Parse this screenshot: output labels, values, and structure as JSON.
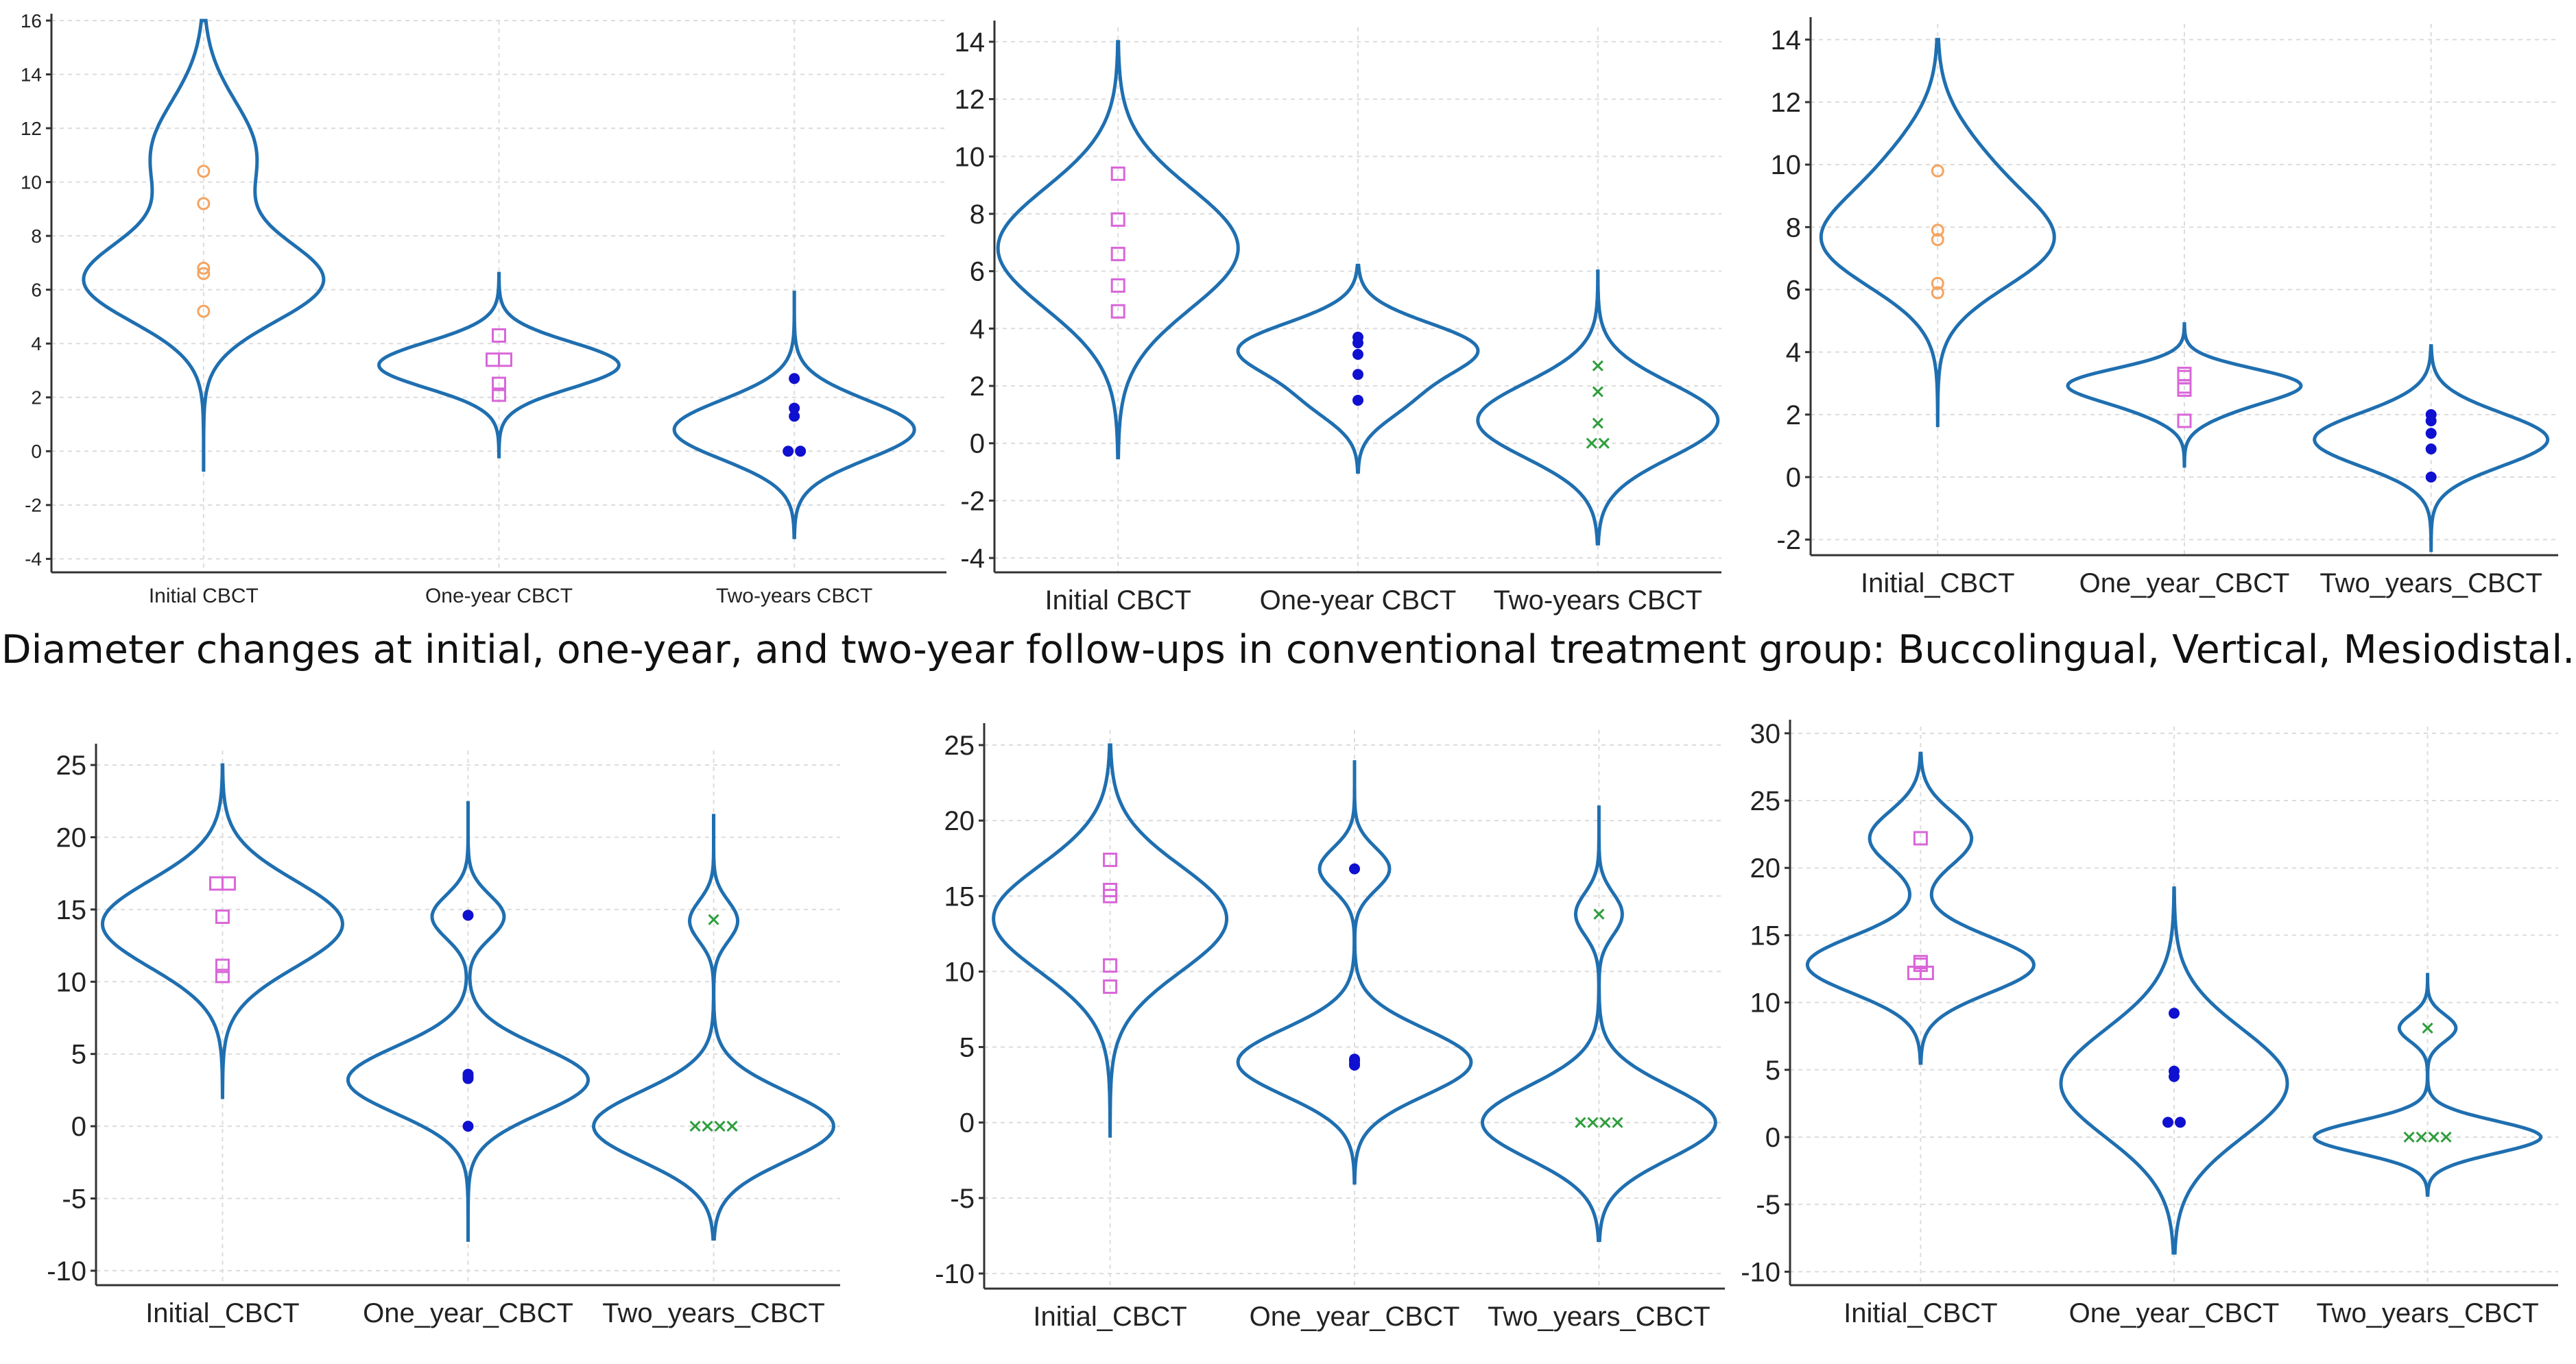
{
  "caption": "Diameter changes at initial, one-year, and two-year follow-ups in conventional treatment group: Buccolingual, Vertical, Mesiodistal.",
  "colors": {
    "violin": "#1f6fb0",
    "circle": "#f4a460",
    "square": "#d966d9",
    "dot": "#1010d0",
    "cross": "#2e9e3c",
    "grid": "#dcdcdc"
  },
  "chart_data": [
    {
      "type": "violin",
      "ylim": [
        -4.5,
        16
      ],
      "yticks": [
        -4,
        -2,
        0,
        2,
        4,
        6,
        8,
        10,
        12,
        14,
        16
      ],
      "ytick_labels": [
        "-4",
        "-2",
        "0",
        "2",
        "4",
        "6",
        "8",
        "10",
        "12",
        "14",
        "16"
      ],
      "categories": [
        "Initial CBCT",
        "One-year CBCT",
        "Two-years CBCT"
      ],
      "series": [
        {
          "name": "Initial CBCT",
          "marker": "circle",
          "values": [
            10.4,
            9.2,
            6.8,
            6.6,
            5.2
          ],
          "violin": {
            "min": -0.7,
            "max": 16,
            "modes": [
              {
                "y": 6.3,
                "w": 1,
                "s": 1.5
              },
              {
                "y": 11,
                "w": 0.45,
                "s": 2
              }
            ]
          }
        },
        {
          "name": "One-year CBCT",
          "marker": "square",
          "values": [
            4.3,
            3.4,
            3.4,
            2.5,
            2.1
          ],
          "violin": {
            "min": -0.2,
            "max": 6.6,
            "modes": [
              {
                "y": 3.2,
                "w": 1,
                "s": 0.85
              }
            ]
          }
        },
        {
          "name": "Two-years CBCT",
          "marker": "dot",
          "values": [
            2.7,
            1.6,
            1.3,
            0,
            0
          ],
          "violin": {
            "min": -3.2,
            "max": 5.9,
            "modes": [
              {
                "y": 0.8,
                "w": 1,
                "s": 1.1
              }
            ]
          }
        }
      ]
    },
    {
      "type": "violin",
      "ylim": [
        -4.5,
        14.5
      ],
      "yticks": [
        -4,
        -2,
        0,
        2,
        4,
        6,
        8,
        10,
        12,
        14
      ],
      "ytick_labels": [
        "-4",
        "-2",
        "0",
        "2",
        "4",
        "6",
        "8",
        "10",
        "12",
        "14"
      ],
      "categories": [
        "Initial CBCT",
        "One-year CBCT",
        "Two-years CBCT"
      ],
      "series": [
        {
          "name": "Initial CBCT",
          "marker": "square",
          "values": [
            9.4,
            7.8,
            6.6,
            5.5,
            4.6
          ],
          "violin": {
            "min": -0.5,
            "max": 14,
            "modes": [
              {
                "y": 6.8,
                "w": 1,
                "s": 2.1
              }
            ]
          }
        },
        {
          "name": "One-year CBCT",
          "marker": "dot",
          "values": [
            3.7,
            3.5,
            3.1,
            2.4,
            1.5
          ],
          "violin": {
            "min": -1,
            "max": 6.2,
            "modes": [
              {
                "y": 3.3,
                "w": 1,
                "s": 0.9
              },
              {
                "y": 1.5,
                "w": 0.35,
                "s": 0.8
              }
            ]
          }
        },
        {
          "name": "Two-years CBCT",
          "marker": "cross",
          "values": [
            2.7,
            1.8,
            0.7,
            0,
            0
          ],
          "violin": {
            "min": -3.5,
            "max": 6,
            "modes": [
              {
                "y": 0.8,
                "w": 1,
                "s": 1.3
              }
            ]
          }
        }
      ]
    },
    {
      "type": "violin",
      "ylim": [
        -2.5,
        14.5
      ],
      "yticks": [
        -2,
        0,
        2,
        4,
        6,
        8,
        10,
        12,
        14
      ],
      "ytick_labels": [
        "-2",
        "0",
        "2",
        "4",
        "6",
        "8",
        "10",
        "12",
        "14"
      ],
      "categories": [
        "Initial_CBCT",
        "One_year_CBCT",
        "Two_years_CBCT"
      ],
      "series": [
        {
          "name": "Initial_CBCT",
          "marker": "circle",
          "values": [
            9.8,
            7.9,
            7.6,
            6.2,
            5.9
          ],
          "violin": {
            "min": 1.6,
            "max": 14,
            "modes": [
              {
                "y": 7.4,
                "w": 1,
                "s": 1.4
              },
              {
                "y": 9.8,
                "w": 0.4,
                "s": 1.5
              }
            ]
          }
        },
        {
          "name": "One_year_CBCT",
          "marker": "square",
          "values": [
            3.3,
            3.2,
            2.9,
            2.8,
            1.8
          ],
          "violin": {
            "min": 0.3,
            "max": 4.9,
            "modes": [
              {
                "y": 3,
                "w": 1,
                "s": 0.5
              },
              {
                "y": 2.2,
                "w": 0.3,
                "s": 0.5
              }
            ]
          }
        },
        {
          "name": "Two_years_CBCT",
          "marker": "dot",
          "values": [
            2,
            1.8,
            1.4,
            0.9,
            0
          ],
          "violin": {
            "min": -2.4,
            "max": 4.2,
            "modes": [
              {
                "y": 1.2,
                "w": 1,
                "s": 0.85
              }
            ]
          }
        }
      ]
    },
    {
      "type": "violin",
      "ylim": [
        -11,
        26
      ],
      "yticks": [
        -10,
        -5,
        0,
        5,
        10,
        15,
        20,
        25
      ],
      "ytick_labels": [
        "-10",
        "-5",
        "0",
        "5",
        "10",
        "15",
        "20",
        "25"
      ],
      "categories": [
        "Initial_CBCT",
        "One_year_CBCT",
        "Two_years_CBCT"
      ],
      "series": [
        {
          "name": "Initial_CBCT",
          "marker": "square",
          "values": [
            16.8,
            16.8,
            14.5,
            11.1,
            10.4
          ],
          "violin": {
            "min": 2,
            "max": 25,
            "modes": [
              {
                "y": 14,
                "w": 1,
                "s": 3
              }
            ]
          }
        },
        {
          "name": "One_year_CBCT",
          "marker": "dot",
          "values": [
            14.6,
            3.6,
            3.4,
            3.3,
            0
          ],
          "violin": {
            "min": -8,
            "max": 22.5,
            "modes": [
              {
                "y": 3.2,
                "w": 1,
                "s": 2.3
              },
              {
                "y": 14.5,
                "w": 0.3,
                "s": 1.5
              }
            ]
          }
        },
        {
          "name": "Two_years_CBCT",
          "marker": "cross",
          "values": [
            14.3,
            0,
            0,
            0,
            0
          ],
          "violin": {
            "min": -7.8,
            "max": 21.5,
            "modes": [
              {
                "y": 0,
                "w": 1,
                "s": 2.4
              },
              {
                "y": 14.2,
                "w": 0.2,
                "s": 1.4
              }
            ]
          }
        }
      ]
    },
    {
      "type": "violin",
      "ylim": [
        -11,
        26
      ],
      "yticks": [
        -10,
        -5,
        0,
        5,
        10,
        15,
        20,
        25
      ],
      "ytick_labels": [
        "-10",
        "-5",
        "0",
        "5",
        "10",
        "15",
        "20",
        "25"
      ],
      "categories": [
        "Initial_CBCT",
        "One_year_CBCT",
        "Two_years_CBCT"
      ],
      "series": [
        {
          "name": "Initial_CBCT",
          "marker": "square",
          "values": [
            17.4,
            15.4,
            15,
            10.4,
            9
          ],
          "violin": {
            "min": -1,
            "max": 25,
            "modes": [
              {
                "y": 13.5,
                "w": 1,
                "s": 3.5
              }
            ]
          }
        },
        {
          "name": "One_year_CBCT",
          "marker": "dot",
          "values": [
            16.8,
            4.2,
            4.1,
            3.9,
            3.8
          ],
          "violin": {
            "min": -4,
            "max": 24,
            "modes": [
              {
                "y": 4,
                "w": 1,
                "s": 2.2
              },
              {
                "y": 16.8,
                "w": 0.3,
                "s": 1.4
              }
            ]
          }
        },
        {
          "name": "Two_years_CBCT",
          "marker": "cross",
          "values": [
            13.8,
            0,
            0,
            0,
            0
          ],
          "violin": {
            "min": -7.8,
            "max": 21,
            "modes": [
              {
                "y": 0,
                "w": 1,
                "s": 2.4
              },
              {
                "y": 13.8,
                "w": 0.2,
                "s": 1.4
              }
            ]
          }
        }
      ]
    },
    {
      "type": "violin",
      "ylim": [
        -11,
        30.5
      ],
      "yticks": [
        -10,
        -5,
        0,
        5,
        10,
        15,
        20,
        25,
        30
      ],
      "ytick_labels": [
        "-10",
        "-5",
        "0",
        "5",
        "10",
        "15",
        "20",
        "25",
        "30"
      ],
      "categories": [
        "Initial_CBCT",
        "One_year_CBCT",
        "Two_years_CBCT"
      ],
      "series": [
        {
          "name": "Initial_CBCT",
          "marker": "square",
          "values": [
            22.2,
            13,
            12.8,
            12.2,
            12.2
          ],
          "violin": {
            "min": 5.5,
            "max": 28.5,
            "modes": [
              {
                "y": 12.8,
                "w": 1,
                "s": 2.1
              },
              {
                "y": 22.2,
                "w": 0.45,
                "s": 2
              }
            ]
          }
        },
        {
          "name": "One_year_CBCT",
          "marker": "dot",
          "values": [
            9.2,
            4.9,
            4.5,
            1.1,
            1.1
          ],
          "violin": {
            "min": -8.6,
            "max": 18.5,
            "modes": [
              {
                "y": 4,
                "w": 1,
                "s": 4
              }
            ]
          }
        },
        {
          "name": "Two_years_CBCT",
          "marker": "cross",
          "values": [
            8.1,
            0,
            0,
            0,
            0
          ],
          "violin": {
            "min": -4.3,
            "max": 12.2,
            "modes": [
              {
                "y": 0,
                "w": 1,
                "s": 1.2
              },
              {
                "y": 8.1,
                "w": 0.25,
                "s": 1
              }
            ]
          }
        }
      ]
    }
  ]
}
